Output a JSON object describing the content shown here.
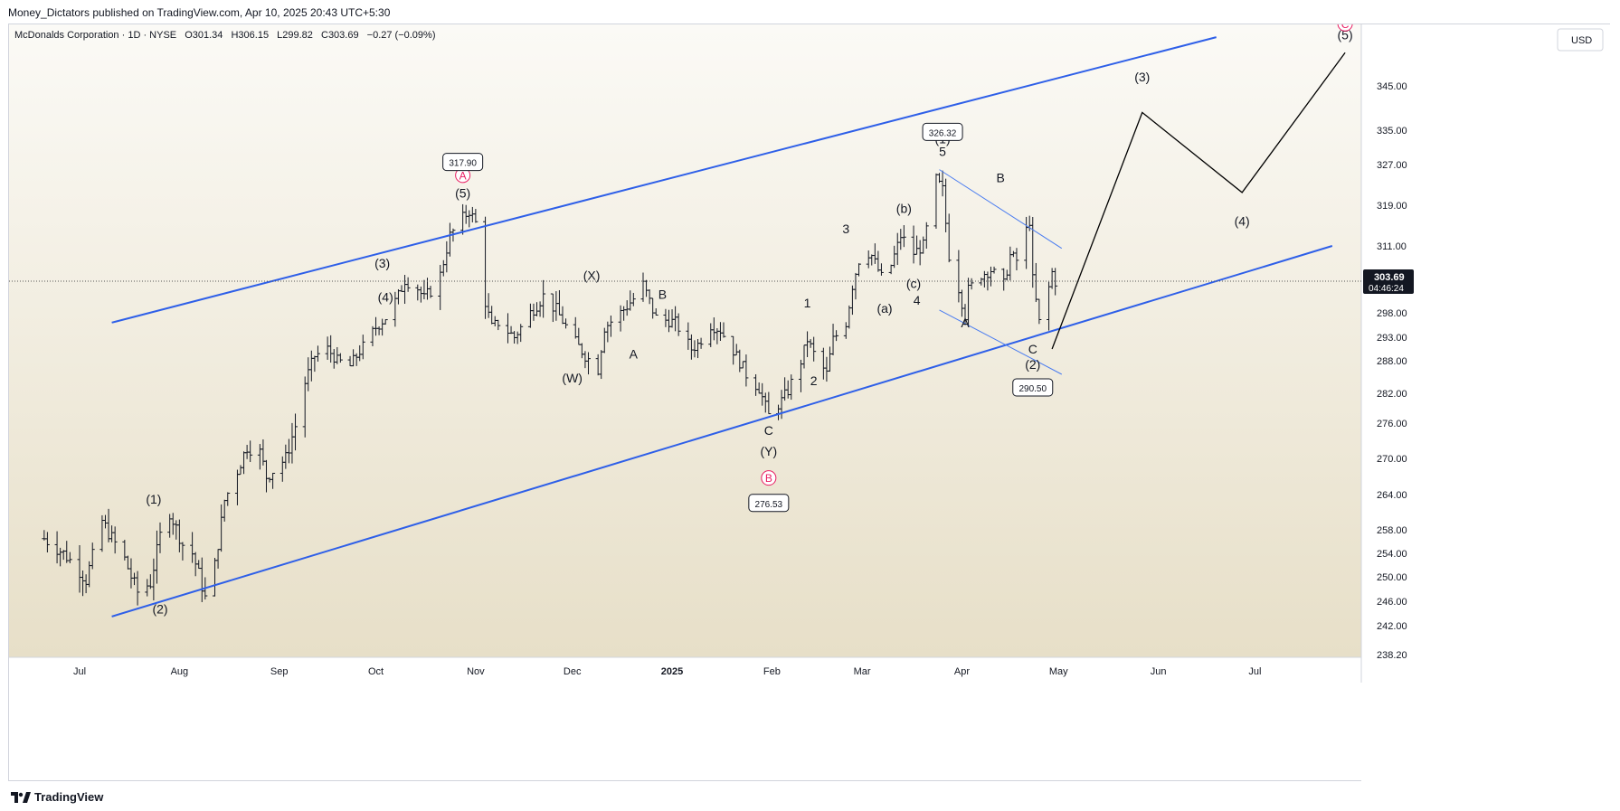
{
  "publisher_line": "Money_Dictators published on TradingView.com, Apr 10, 2025 20:43 UTC+5:30",
  "brand": "TradingView",
  "colors": {
    "background_top": "#fbfaf6",
    "background_bottom": "#e7dfc8",
    "channel": "#2e5fe8",
    "wedge": "#4a7cf0",
    "projection": "#000000",
    "circle_label": "#e91e63",
    "price_line": "#555555",
    "bars": "#131722"
  },
  "chart_data": {
    "type": "ohlc",
    "title": "McDonalds Corporation · 1D · NYSE",
    "ohlc_header": {
      "open_label": "O",
      "open": "301.34",
      "high_label": "H",
      "high": "306.15",
      "low_label": "L",
      "low": "299.82",
      "close_label": "C",
      "close": "303.69",
      "change": "−0.27 (−0.09%)"
    },
    "currency": "USD",
    "last_price": "303.69",
    "countdown": "04:46:24",
    "y_axis_ticks": [
      "238.20",
      "242.00",
      "246.00",
      "250.00",
      "254.00",
      "258.00",
      "264.00",
      "270.00",
      "276.00",
      "282.00",
      "288.00",
      "293.00",
      "298.00",
      "303.69",
      "311.00",
      "319.00",
      "327.00",
      "335.00",
      "345.00"
    ],
    "x_axis_ticks": [
      {
        "date": "2024-07-01",
        "label": "Jul"
      },
      {
        "date": "2024-08-01",
        "label": "Aug"
      },
      {
        "date": "2024-09-01",
        "label": "Sep"
      },
      {
        "date": "2024-10-01",
        "label": "Oct"
      },
      {
        "date": "2024-11-01",
        "label": "Nov"
      },
      {
        "date": "2024-12-01",
        "label": "Dec"
      },
      {
        "date": "2025-01-01",
        "label": "2025",
        "bold": true
      },
      {
        "date": "2025-02-01",
        "label": "Feb"
      },
      {
        "date": "2025-03-01",
        "label": "Mar"
      },
      {
        "date": "2025-04-01",
        "label": "Apr"
      },
      {
        "date": "2025-05-01",
        "label": "May"
      },
      {
        "date": "2025-06-01",
        "label": "Jun"
      },
      {
        "date": "2025-07-01",
        "label": "Jul"
      }
    ],
    "price_path": [
      [
        "2024-06-20",
        256.5
      ],
      [
        "2024-06-26",
        254.0
      ],
      [
        "2024-07-01",
        251.0
      ],
      [
        "2024-07-03",
        249.5
      ],
      [
        "2024-07-08",
        259.5
      ],
      [
        "2024-07-10",
        257.5
      ],
      [
        "2024-07-15",
        253.0
      ],
      [
        "2024-07-17",
        250.0
      ],
      [
        "2024-07-19",
        247.5
      ],
      [
        "2024-07-23",
        249.0
      ],
      [
        "2024-07-26",
        257.0
      ],
      [
        "2024-07-29",
        261.0
      ],
      [
        "2024-08-02",
        255.5
      ],
      [
        "2024-08-05",
        254.0
      ],
      [
        "2024-08-07",
        250.5
      ],
      [
        "2024-08-09",
        246.5
      ],
      [
        "2024-08-12",
        252.0
      ],
      [
        "2024-08-15",
        263.0
      ],
      [
        "2024-08-19",
        268.0
      ],
      [
        "2024-08-22",
        272.0
      ],
      [
        "2024-08-26",
        271.0
      ],
      [
        "2024-08-28",
        267.0
      ],
      [
        "2024-09-03",
        270.0
      ],
      [
        "2024-09-06",
        275.5
      ],
      [
        "2024-09-09",
        284.0
      ],
      [
        "2024-09-12",
        289.0
      ],
      [
        "2024-09-16",
        290.5
      ],
      [
        "2024-09-19",
        288.0
      ],
      [
        "2024-09-23",
        287.0
      ],
      [
        "2024-09-26",
        290.0
      ],
      [
        "2024-10-01",
        295.0
      ],
      [
        "2024-10-04",
        297.0
      ],
      [
        "2024-10-08",
        301.0
      ],
      [
        "2024-10-10",
        304.0
      ],
      [
        "2024-10-14",
        302.5
      ],
      [
        "2024-10-16",
        300.5
      ],
      [
        "2024-10-18",
        302.0
      ],
      [
        "2024-10-21",
        305.0
      ],
      [
        "2024-10-24",
        313.0
      ],
      [
        "2024-10-28",
        316.5
      ],
      [
        "2024-10-30",
        317.9
      ],
      [
        "2024-11-01",
        315.5
      ],
      [
        "2024-11-04",
        300.0
      ],
      [
        "2024-11-06",
        295.0
      ],
      [
        "2024-11-08",
        296.0
      ],
      [
        "2024-11-13",
        293.0
      ],
      [
        "2024-11-18",
        298.0
      ],
      [
        "2024-11-22",
        301.0
      ],
      [
        "2024-11-26",
        298.5
      ],
      [
        "2024-12-02",
        292.0
      ],
      [
        "2024-12-05",
        289.0
      ],
      [
        "2024-12-09",
        286.5
      ],
      [
        "2024-12-11",
        295.0
      ],
      [
        "2024-12-16",
        298.0
      ],
      [
        "2024-12-20",
        300.5
      ],
      [
        "2024-12-23",
        303.0
      ],
      [
        "2024-12-27",
        297.0
      ],
      [
        "2025-01-02",
        296.0
      ],
      [
        "2025-01-07",
        290.5
      ],
      [
        "2025-01-09",
        291.5
      ],
      [
        "2025-01-13",
        295.5
      ],
      [
        "2025-01-16",
        294.5
      ],
      [
        "2025-01-21",
        289.0
      ],
      [
        "2025-01-24",
        285.5
      ],
      [
        "2025-01-28",
        283.0
      ],
      [
        "2025-01-31",
        277.5
      ],
      [
        "2025-02-04",
        280.5
      ],
      [
        "2025-02-06",
        282.5
      ],
      [
        "2025-02-10",
        288.0
      ],
      [
        "2025-02-12",
        292.5
      ],
      [
        "2025-02-14",
        289.5
      ],
      [
        "2025-02-18",
        285.5
      ],
      [
        "2025-02-20",
        292.5
      ],
      [
        "2025-02-24",
        296.0
      ],
      [
        "2025-02-26",
        303.0
      ],
      [
        "2025-03-01",
        310.5
      ],
      [
        "2025-03-04",
        309.0
      ],
      [
        "2025-03-07",
        304.5
      ],
      [
        "2025-03-10",
        307.0
      ],
      [
        "2025-03-13",
        313.0
      ],
      [
        "2025-03-17",
        309.5
      ],
      [
        "2025-03-20",
        311.0
      ],
      [
        "2025-03-24",
        324.0
      ],
      [
        "2025-03-26",
        322.0
      ],
      [
        "2025-03-28",
        309.0
      ],
      [
        "2025-03-31",
        302.5
      ],
      [
        "2025-04-02",
        297.5
      ],
      [
        "2025-04-03",
        302.0
      ],
      [
        "2025-04-07",
        305.0
      ],
      [
        "2025-04-10",
        306.0
      ],
      [
        "2025-04-14",
        303.0
      ],
      [
        "2025-04-16",
        309.0
      ],
      [
        "2025-04-18",
        308.0
      ],
      [
        "2025-04-22",
        316.0
      ],
      [
        "2025-04-23",
        304.0
      ],
      [
        "2025-04-25",
        296.0
      ],
      [
        "2025-04-28",
        302.5
      ],
      [
        "2025-04-29",
        305.5
      ],
      [
        "2025-04-30",
        303.69
      ]
    ],
    "channel_lines": [
      {
        "from": [
          "2024-07-11",
          296.0
        ],
        "to": [
          "2025-06-19",
          356.0
        ]
      },
      {
        "from": [
          "2024-07-11",
          243.5
        ],
        "to": [
          "2025-07-25",
          311.0
        ]
      }
    ],
    "wedge_lines": [
      {
        "from": [
          "2025-03-25",
          326.0
        ],
        "to": [
          "2025-05-02",
          310.5
        ]
      },
      {
        "from": [
          "2025-03-25",
          298.5
        ],
        "to": [
          "2025-05-02",
          285.5
        ]
      }
    ],
    "projection_path": [
      [
        "2025-04-29",
        290.5
      ],
      [
        "2025-05-27",
        339.0
      ],
      [
        "2025-06-27",
        321.5
      ],
      [
        "2025-07-29",
        352.5
      ]
    ],
    "wave_labels": [
      {
        "date": "2024-07-24",
        "price": 262.5,
        "text": "(1)"
      },
      {
        "date": "2024-07-26",
        "price": 244.0,
        "text": "(2)"
      },
      {
        "date": "2024-10-03",
        "price": 306.5,
        "text": "(3)"
      },
      {
        "date": "2024-10-04",
        "price": 300.0,
        "text": "(4)"
      },
      {
        "date": "2024-10-28",
        "price": 320.5,
        "text": "(5)"
      },
      {
        "date": "2024-10-28",
        "price": 324.0,
        "text": "A",
        "style": "circle"
      },
      {
        "date": "2024-12-01",
        "price": 284.0,
        "text": "(W)"
      },
      {
        "date": "2024-12-07",
        "price": 304.0,
        "text": "(X)"
      },
      {
        "date": "2024-12-20",
        "price": 288.5,
        "text": "A"
      },
      {
        "date": "2024-12-29",
        "price": 300.5,
        "text": "B"
      },
      {
        "date": "2025-01-31",
        "price": 274.0,
        "text": "C"
      },
      {
        "date": "2025-01-31",
        "price": 270.5,
        "text": "(Y)"
      },
      {
        "date": "2025-01-31",
        "price": 266.0,
        "text": "B",
        "style": "circle"
      },
      {
        "date": "2025-02-12",
        "price": 299.0,
        "text": "1"
      },
      {
        "date": "2025-02-14",
        "price": 283.5,
        "text": "2"
      },
      {
        "date": "2025-02-24",
        "price": 313.5,
        "text": "3"
      },
      {
        "date": "2025-03-08",
        "price": 298.0,
        "text": "(a)"
      },
      {
        "date": "2025-03-14",
        "price": 317.5,
        "text": "(b)"
      },
      {
        "date": "2025-03-17",
        "price": 302.5,
        "text": "(c)"
      },
      {
        "date": "2025-03-18",
        "price": 299.5,
        "text": "4"
      },
      {
        "date": "2025-03-26",
        "price": 332.0,
        "text": "(1)"
      },
      {
        "date": "2025-03-26",
        "price": 329.0,
        "text": "5"
      },
      {
        "date": "2025-04-02",
        "price": 295.0,
        "text": "A"
      },
      {
        "date": "2025-04-13",
        "price": 323.5,
        "text": "B"
      },
      {
        "date": "2025-04-23",
        "price": 289.5,
        "text": "C"
      },
      {
        "date": "2025-04-23",
        "price": 286.5,
        "text": "(2)"
      },
      {
        "date": "2025-05-27",
        "price": 346.0,
        "text": "(3)"
      },
      {
        "date": "2025-06-27",
        "price": 315.0,
        "text": "(4)"
      },
      {
        "date": "2025-07-29",
        "price": 355.5,
        "text": "(5)"
      },
      {
        "date": "2025-07-29",
        "price": 358.0,
        "text": "C",
        "style": "circle"
      }
    ],
    "price_callouts": [
      {
        "date": "2024-10-28",
        "price": 327.5,
        "text": "317.90"
      },
      {
        "date": "2025-03-26",
        "price": 334.5,
        "text": "326.32"
      },
      {
        "date": "2025-01-31",
        "price": 262.5,
        "text": "276.53"
      },
      {
        "date": "2025-04-23",
        "price": 283.0,
        "text": "290.50"
      }
    ]
  }
}
